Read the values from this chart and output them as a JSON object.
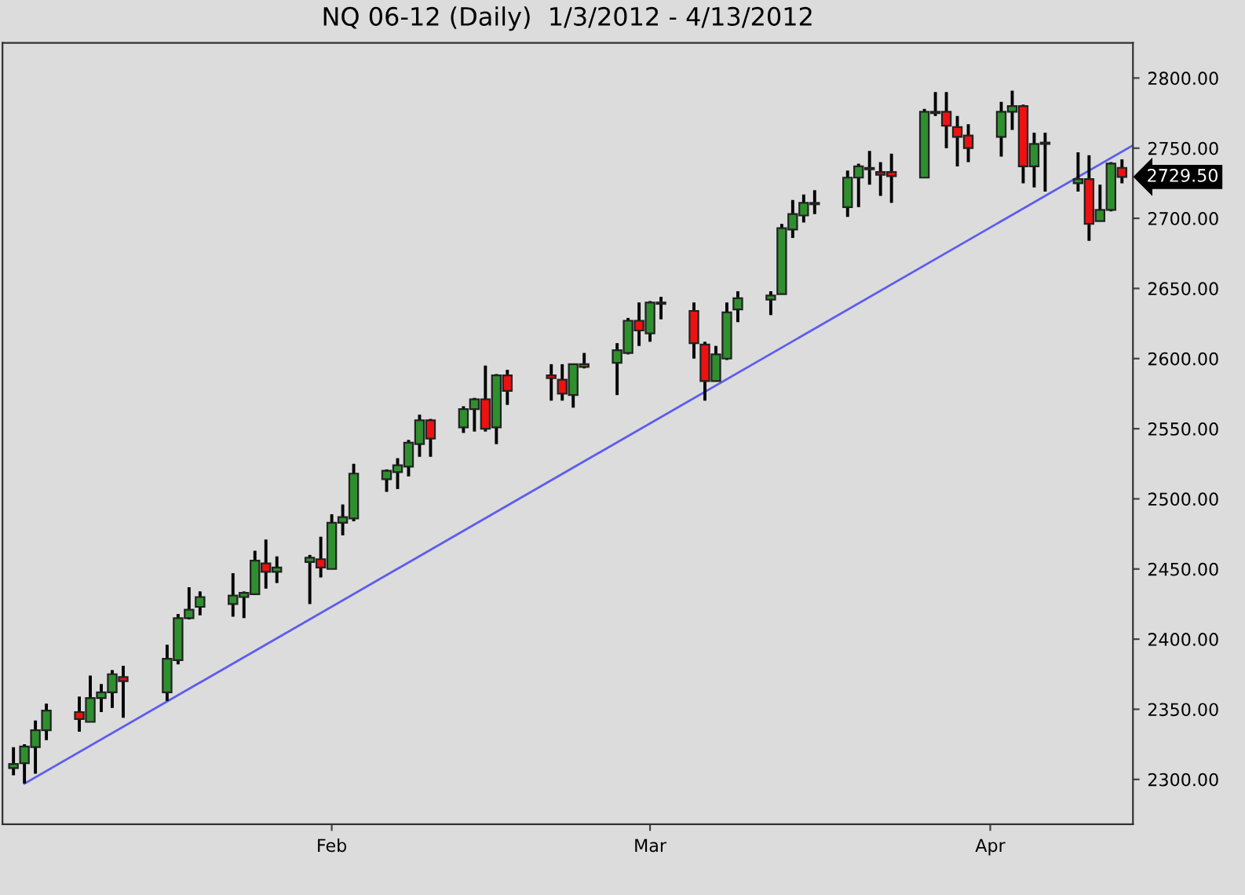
{
  "chart_data": {
    "type": "candlestick",
    "title": "NQ 06-12 (Daily)  1/3/2012 - 4/13/2012",
    "xlim": [
      "2012-01-02",
      "2012-04-14"
    ],
    "xticks": [
      {
        "value": "2012-02-01",
        "label": "Feb"
      },
      {
        "value": "2012-03-01",
        "label": "Mar"
      },
      {
        "value": "2012-04-01",
        "label": "Apr"
      }
    ],
    "ylim": [
      2268,
      2825
    ],
    "yticks": [
      {
        "value": 2300,
        "label": "2300.00"
      },
      {
        "value": 2350,
        "label": "2350.00"
      },
      {
        "value": 2400,
        "label": "2400.00"
      },
      {
        "value": 2450,
        "label": "2450.00"
      },
      {
        "value": 2500,
        "label": "2500.00"
      },
      {
        "value": 2550,
        "label": "2550.00"
      },
      {
        "value": 2600,
        "label": "2600.00"
      },
      {
        "value": 2650,
        "label": "2650.00"
      },
      {
        "value": 2700,
        "label": "2700.00"
      },
      {
        "value": 2750,
        "label": "2750.00"
      },
      {
        "value": 2800,
        "label": "2800.00"
      }
    ],
    "grid": false,
    "series": [
      {
        "type": "candlestick",
        "x": [
          "2012-01-03",
          "2012-01-04",
          "2012-01-05",
          "2012-01-06",
          "2012-01-09",
          "2012-01-10",
          "2012-01-11",
          "2012-01-12",
          "2012-01-13",
          "2012-01-17",
          "2012-01-18",
          "2012-01-19",
          "2012-01-20",
          "2012-01-23",
          "2012-01-24",
          "2012-01-25",
          "2012-01-26",
          "2012-01-27",
          "2012-01-30",
          "2012-01-31",
          "2012-02-01",
          "2012-02-02",
          "2012-02-03",
          "2012-02-06",
          "2012-02-07",
          "2012-02-08",
          "2012-02-09",
          "2012-02-10",
          "2012-02-13",
          "2012-02-14",
          "2012-02-15",
          "2012-02-16",
          "2012-02-17",
          "2012-02-21",
          "2012-02-22",
          "2012-02-23",
          "2012-02-24",
          "2012-02-27",
          "2012-02-28",
          "2012-02-29",
          "2012-03-01",
          "2012-03-02",
          "2012-03-05",
          "2012-03-06",
          "2012-03-07",
          "2012-03-08",
          "2012-03-09",
          "2012-03-12",
          "2012-03-13",
          "2012-03-14",
          "2012-03-15",
          "2012-03-16",
          "2012-03-19",
          "2012-03-20",
          "2012-03-21",
          "2012-03-22",
          "2012-03-23",
          "2012-03-26",
          "2012-03-27",
          "2012-03-28",
          "2012-03-29",
          "2012-03-30",
          "2012-04-02",
          "2012-04-03",
          "2012-04-04",
          "2012-04-05",
          "2012-04-06",
          "2012-04-09",
          "2012-04-10",
          "2012-04-11",
          "2012-04-12",
          "2012-04-13"
        ],
        "ohlc": [
          [
            2308,
            2323,
            2303,
            2311
          ],
          [
            2311.5,
            2325,
            2297,
            2323.5
          ],
          [
            2323,
            2342,
            2304,
            2335
          ],
          [
            2335,
            2354,
            2328,
            2349
          ],
          [
            2348,
            2359,
            2334,
            2343
          ],
          [
            2341,
            2374,
            2341,
            2358
          ],
          [
            2358,
            2368,
            2348,
            2362
          ],
          [
            2362,
            2378,
            2351,
            2375
          ],
          [
            2373,
            2381,
            2344,
            2370
          ],
          [
            2362,
            2396,
            2356,
            2386
          ],
          [
            2385,
            2418,
            2382,
            2415
          ],
          [
            2415,
            2437,
            2414,
            2421
          ],
          [
            2423,
            2434,
            2417,
            2430
          ],
          [
            2425,
            2447,
            2416,
            2431
          ],
          [
            2430,
            2434,
            2415,
            2433
          ],
          [
            2432,
            2463,
            2432,
            2456
          ],
          [
            2454,
            2471,
            2436,
            2448
          ],
          [
            2448,
            2459,
            2440,
            2451
          ],
          [
            2455,
            2460,
            2425,
            2458
          ],
          [
            2457,
            2473,
            2444,
            2451
          ],
          [
            2450,
            2489,
            2450,
            2483
          ],
          [
            2483,
            2496,
            2474,
            2487
          ],
          [
            2486,
            2525,
            2484,
            2518
          ],
          [
            2514,
            2521,
            2505,
            2520
          ],
          [
            2519,
            2529,
            2507,
            2524
          ],
          [
            2523,
            2542,
            2516,
            2540
          ],
          [
            2539,
            2560,
            2530,
            2556
          ],
          [
            2556,
            2557,
            2530,
            2543
          ],
          [
            2551,
            2566,
            2547,
            2564
          ],
          [
            2564,
            2572,
            2548,
            2571
          ],
          [
            2571,
            2595,
            2548,
            2550
          ],
          [
            2551,
            2589,
            2539,
            2588
          ],
          [
            2588,
            2592,
            2567,
            2577
          ],
          [
            2588,
            2596,
            2570,
            2586
          ],
          [
            2585,
            2596,
            2570,
            2575
          ],
          [
            2574,
            2596,
            2565,
            2596
          ],
          [
            2594,
            2604,
            2593,
            2596
          ],
          [
            2597,
            2611,
            2574,
            2606
          ],
          [
            2604,
            2629,
            2603,
            2627
          ],
          [
            2627,
            2640,
            2609,
            2620
          ],
          [
            2618,
            2641,
            2612,
            2640
          ],
          [
            2639,
            2644,
            2628,
            2640
          ],
          [
            2634,
            2640,
            2600,
            2611
          ],
          [
            2610,
            2612,
            2570,
            2584
          ],
          [
            2584,
            2609,
            2584,
            2603
          ],
          [
            2600,
            2640,
            2599,
            2633
          ],
          [
            2635,
            2648,
            2626,
            2643
          ],
          [
            2642,
            2648,
            2631,
            2645
          ],
          [
            2646,
            2696,
            2646,
            2693
          ],
          [
            2692,
            2713,
            2686,
            2703
          ],
          [
            2702,
            2717,
            2697,
            2711
          ],
          [
            2710,
            2720,
            2703,
            2711
          ],
          [
            2708,
            2734,
            2701,
            2729
          ],
          [
            2729,
            2739,
            2708,
            2737
          ],
          [
            2735,
            2748,
            2724,
            2736
          ],
          [
            2733,
            2740,
            2716,
            2731
          ],
          [
            2733,
            2746,
            2711,
            2730
          ],
          [
            2729,
            2778,
            2729,
            2776
          ],
          [
            2775,
            2790,
            2773,
            2776
          ],
          [
            2776,
            2790,
            2750,
            2766
          ],
          [
            2765,
            2773,
            2737,
            2758
          ],
          [
            2759,
            2767,
            2740,
            2750
          ],
          [
            2758,
            2783,
            2744,
            2776
          ],
          [
            2776,
            2791,
            2763,
            2780
          ],
          [
            2780,
            2781,
            2725,
            2737
          ],
          [
            2737,
            2761,
            2722,
            2753
          ],
          [
            2754,
            2761,
            2719,
            2753
          ],
          [
            2725,
            2747,
            2719,
            2728
          ],
          [
            2728,
            2745,
            2684,
            2696
          ],
          [
            2698,
            2724,
            2698,
            2706
          ],
          [
            2706,
            2740,
            2705,
            2739
          ],
          [
            2736,
            2742,
            2725,
            2729.5
          ]
        ],
        "colors": [
          "#2f8f2f",
          "#2f8f2f",
          "#2f8f2f",
          "#2f8f2f",
          "#ee1111",
          "#2f8f2f",
          "#2f8f2f",
          "#2f8f2f",
          "#ee1111",
          "#2f8f2f",
          "#2f8f2f",
          "#2f8f2f",
          "#2f8f2f",
          "#2f8f2f",
          "#2f8f2f",
          "#2f8f2f",
          "#ee1111",
          "#2f8f2f",
          "#2f8f2f",
          "#ee1111",
          "#2f8f2f",
          "#2f8f2f",
          "#2f8f2f",
          "#2f8f2f",
          "#2f8f2f",
          "#2f8f2f",
          "#2f8f2f",
          "#ee1111",
          "#2f8f2f",
          "#2f8f2f",
          "#ee1111",
          "#2f8f2f",
          "#ee1111",
          "#ee1111",
          "#ee1111",
          "#2f8f2f",
          "#2f8f2f",
          "#2f8f2f",
          "#2f8f2f",
          "#ee1111",
          "#2f8f2f",
          "#2f8f2f",
          "#ee1111",
          "#ee1111",
          "#2f8f2f",
          "#2f8f2f",
          "#2f8f2f",
          "#2f8f2f",
          "#2f8f2f",
          "#2f8f2f",
          "#2f8f2f",
          "#2f8f2f",
          "#2f8f2f",
          "#2f8f2f",
          "#2f8f2f",
          "#ee1111",
          "#ee1111",
          "#2f8f2f",
          "#2f8f2f",
          "#ee1111",
          "#ee1111",
          "#ee1111",
          "#2f8f2f",
          "#2f8f2f",
          "#ee1111",
          "#2f8f2f",
          "#ee1111",
          "#2f8f2f",
          "#ee1111",
          "#2f8f2f",
          "#2f8f2f",
          "#ee1111"
        ]
      },
      {
        "type": "line",
        "x": [
          "2012-01-04",
          "2012-04-14"
        ],
        "values": [
          2297,
          2752
        ],
        "color": "#5c5cf0"
      }
    ],
    "annotations": [
      "2729.50"
    ]
  }
}
